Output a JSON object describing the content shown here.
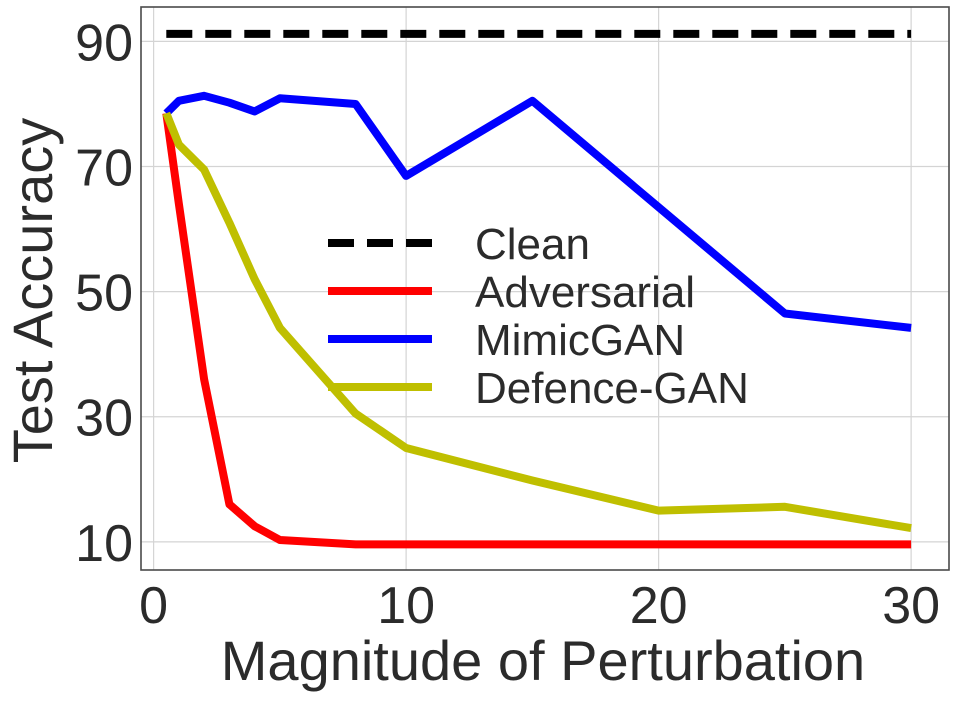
{
  "chart_data": {
    "type": "line",
    "title": "",
    "xlabel": "Magnitude of Perturbation",
    "ylabel": "Test Accuracy",
    "xlim": [
      -0.5,
      31.5
    ],
    "ylim": [
      5.5,
      95.5
    ],
    "xticks": [
      0,
      10,
      20,
      30
    ],
    "yticks": [
      10,
      30,
      50,
      70,
      90
    ],
    "xtick_labels": [
      "0",
      "10",
      "20",
      "30"
    ],
    "ytick_labels": [
      "10",
      "30",
      "50",
      "70",
      "90"
    ],
    "grid": true,
    "legend_position": "center",
    "series": [
      {
        "name": "Clean",
        "color": "#000000",
        "style": "dashed",
        "x": [
          0.5,
          30
        ],
        "y": [
          91.2,
          91.2
        ]
      },
      {
        "name": "Adversarial",
        "color": "#ff0000",
        "style": "solid",
        "x": [
          0.5,
          1,
          2,
          3,
          4,
          5,
          8,
          10,
          15,
          20,
          25,
          30
        ],
        "y": [
          78.5,
          64,
          36,
          16,
          12.5,
          10.3,
          9.6,
          9.6,
          9.6,
          9.6,
          9.6,
          9.6
        ]
      },
      {
        "name": "MimicGAN",
        "color": "#0000ff",
        "style": "solid",
        "x": [
          0.5,
          1,
          2,
          3,
          4,
          5,
          8,
          10,
          15,
          20,
          25,
          30
        ],
        "y": [
          78.5,
          80.5,
          81.3,
          80.2,
          78.8,
          80.9,
          80.0,
          68.5,
          80.5,
          63.5,
          46.5,
          44.2
        ]
      },
      {
        "name": "Defence-GAN",
        "color": "#bfbf00",
        "style": "solid",
        "x": [
          0.5,
          1,
          2,
          3,
          4,
          5,
          8,
          10,
          15,
          20,
          25,
          30
        ],
        "y": [
          78.5,
          73.5,
          69.5,
          61,
          52,
          44.2,
          30.5,
          25.0,
          19.8,
          15.0,
          15.6,
          12.2
        ]
      }
    ]
  }
}
